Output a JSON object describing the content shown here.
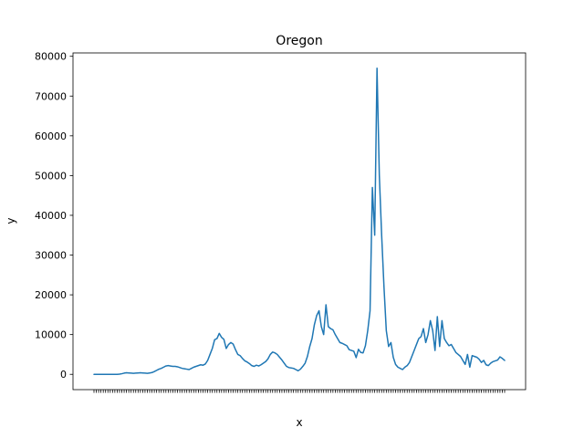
{
  "chart_data": {
    "type": "line",
    "title": "Oregon",
    "xlabel": "x",
    "ylabel": "y",
    "ylim": [
      -3850,
      80850
    ],
    "yticks": [
      0,
      10000,
      20000,
      30000,
      40000,
      50000,
      60000,
      70000,
      80000
    ],
    "grid": false,
    "colors": {
      "line": "#1f77b4"
    },
    "series": [
      {
        "values": [
          0,
          0,
          0,
          0,
          0,
          0,
          0,
          0,
          0,
          0,
          0,
          50,
          150,
          300,
          400,
          350,
          300,
          250,
          300,
          350,
          400,
          350,
          300,
          250,
          350,
          450,
          700,
          1000,
          1300,
          1500,
          1800,
          2100,
          2200,
          2100,
          2000,
          2000,
          1900,
          1700,
          1500,
          1400,
          1300,
          1200,
          1500,
          1800,
          2000,
          2200,
          2400,
          2300,
          2600,
          3500,
          5000,
          6500,
          8700,
          9000,
          10300,
          9300,
          8800,
          6500,
          7500,
          8000,
          7600,
          6200,
          5000,
          4700,
          4000,
          3400,
          3100,
          2700,
          2200,
          2000,
          2300,
          2100,
          2400,
          2800,
          3200,
          3900,
          5000,
          5600,
          5400,
          5000,
          4300,
          3600,
          2800,
          2000,
          1700,
          1600,
          1500,
          1200,
          900,
          1300,
          2000,
          2800,
          4500,
          7000,
          9000,
          12500,
          14800,
          16000,
          12000,
          10000,
          17500,
          12000,
          11500,
          11200,
          10000,
          9000,
          8000,
          7800,
          7500,
          7200,
          6200,
          6000,
          5800,
          4200,
          6300,
          5500,
          5400,
          7200,
          11000,
          16000,
          47000,
          35000,
          77000,
          50000,
          35000,
          22000,
          11000,
          7000,
          8000,
          4300,
          2500,
          1800,
          1500,
          1200,
          1800,
          2200,
          3000,
          4500,
          6000,
          7500,
          9000,
          9500,
          11500,
          8000,
          10000,
          13500,
          11000,
          6000,
          14500,
          7000,
          13500,
          9000,
          8000,
          7200,
          7500,
          6500,
          5500,
          5000,
          4500,
          3500,
          2500,
          5000,
          1800,
          4700,
          4500,
          4300,
          3800,
          3000,
          3500,
          2400,
          2200,
          2800,
          3200,
          3400,
          3600,
          4400,
          4000,
          3500
        ]
      }
    ]
  }
}
